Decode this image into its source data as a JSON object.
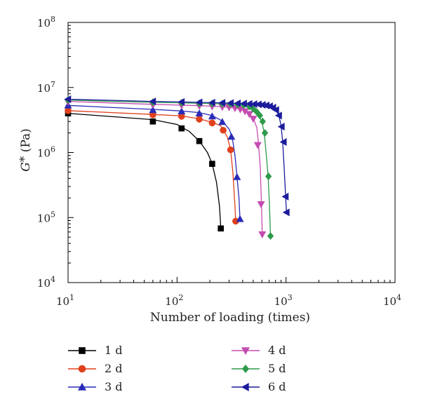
{
  "chart_data": {
    "type": "line",
    "title": "",
    "xlabel": "Number of loading (times)",
    "ylabel_base": "G",
    "ylabel_star": "*",
    "ylabel_unit": " (Pa)",
    "xscale": "log",
    "yscale": "log",
    "xlim": [
      10,
      10000
    ],
    "ylim": [
      10000,
      100000000
    ],
    "x_ticks": [
      {
        "base": "10",
        "exp": "1",
        "value": 10
      },
      {
        "base": "10",
        "exp": "2",
        "value": 100
      },
      {
        "base": "10",
        "exp": "3",
        "value": 1000
      },
      {
        "base": "10",
        "exp": "4",
        "value": 10000
      }
    ],
    "y_ticks": [
      {
        "base": "10",
        "exp": "4",
        "value": 10000
      },
      {
        "base": "10",
        "exp": "5",
        "value": 100000
      },
      {
        "base": "10",
        "exp": "6",
        "value": 1000000
      },
      {
        "base": "10",
        "exp": "7",
        "value": 10000000
      },
      {
        "base": "10",
        "exp": "8",
        "value": 100000000
      }
    ],
    "grid": false,
    "legend_position": "bottom",
    "series": [
      {
        "name": "1 d",
        "color": "#000000",
        "marker": "square",
        "line": [
          [
            10,
            4000000
          ],
          [
            60,
            3200000
          ],
          [
            100,
            2700000
          ],
          [
            130,
            2100000
          ],
          [
            160,
            1500000
          ],
          [
            190,
            1000000
          ],
          [
            210,
            670000
          ],
          [
            230,
            350000
          ],
          [
            245,
            150000
          ],
          [
            252,
            70000
          ]
        ],
        "markers": [
          [
            10,
            4000000
          ],
          [
            60,
            3000000
          ],
          [
            110,
            2350000
          ],
          [
            160,
            1500000
          ],
          [
            210,
            670000
          ],
          [
            252,
            68000
          ]
        ]
      },
      {
        "name": "2 d",
        "color": "#e0401c",
        "marker": "circle",
        "line": [
          [
            10,
            4400000
          ],
          [
            60,
            3850000
          ],
          [
            110,
            3650000
          ],
          [
            160,
            3300000
          ],
          [
            210,
            2900000
          ],
          [
            250,
            2600000
          ],
          [
            270,
            2150000
          ],
          [
            290,
            1700000
          ],
          [
            310,
            1100000
          ],
          [
            325,
            500000
          ],
          [
            340,
            150000
          ],
          [
            345,
            88000
          ]
        ],
        "markers": [
          [
            10,
            4400000
          ],
          [
            60,
            3800000
          ],
          [
            110,
            3600000
          ],
          [
            160,
            3250000
          ],
          [
            210,
            2850000
          ],
          [
            265,
            2200000
          ],
          [
            310,
            1100000
          ],
          [
            345,
            88000
          ]
        ]
      },
      {
        "name": "3 d",
        "color": "#2a2ab8",
        "marker": "triangle-up",
        "line": [
          [
            10,
            5300000
          ],
          [
            60,
            4600000
          ],
          [
            110,
            4350000
          ],
          [
            160,
            4100000
          ],
          [
            210,
            3700000
          ],
          [
            260,
            3050000
          ],
          [
            300,
            2300000
          ],
          [
            320,
            1750000
          ],
          [
            340,
            900000
          ],
          [
            355,
            420000
          ],
          [
            370,
            200000
          ],
          [
            378,
            95000
          ]
        ],
        "markers": [
          [
            10,
            5300000
          ],
          [
            60,
            4500000
          ],
          [
            110,
            4300000
          ],
          [
            160,
            4000000
          ],
          [
            210,
            3600000
          ],
          [
            260,
            2950000
          ],
          [
            315,
            1750000
          ],
          [
            355,
            420000
          ],
          [
            378,
            95000
          ]
        ]
      },
      {
        "name": "4 d",
        "color": "#c44cb0",
        "marker": "triangle-down",
        "line": [
          [
            10,
            6100000
          ],
          [
            60,
            5500000
          ],
          [
            110,
            5350000
          ],
          [
            160,
            5250000
          ],
          [
            210,
            5150000
          ],
          [
            260,
            5050000
          ],
          [
            300,
            4950000
          ],
          [
            350,
            4800000
          ],
          [
            400,
            4500000
          ],
          [
            450,
            4100000
          ],
          [
            500,
            3400000
          ],
          [
            540,
            2400000
          ],
          [
            560,
            1300000
          ],
          [
            580,
            600000
          ],
          [
            595,
            160000
          ],
          [
            605,
            55000
          ]
        ],
        "markers": [
          [
            10,
            6000000
          ],
          [
            60,
            5400000
          ],
          [
            110,
            5300000
          ],
          [
            160,
            5200000
          ],
          [
            210,
            5100000
          ],
          [
            260,
            5000000
          ],
          [
            300,
            4950000
          ],
          [
            340,
            4800000
          ],
          [
            380,
            4600000
          ],
          [
            420,
            4300000
          ],
          [
            460,
            3900000
          ],
          [
            500,
            3300000
          ],
          [
            550,
            1300000
          ],
          [
            590,
            160000
          ],
          [
            605,
            55000
          ]
        ]
      },
      {
        "name": "5 d",
        "color": "#2e9a4a",
        "marker": "diamond",
        "line": [
          [
            10,
            6400000
          ],
          [
            60,
            5900000
          ],
          [
            110,
            5800000
          ],
          [
            160,
            5700000
          ],
          [
            210,
            5650000
          ],
          [
            260,
            5600000
          ],
          [
            310,
            5550000
          ],
          [
            360,
            5450000
          ],
          [
            410,
            5300000
          ],
          [
            460,
            5000000
          ],
          [
            510,
            4500000
          ],
          [
            560,
            3700000
          ],
          [
            600,
            3000000
          ],
          [
            630,
            2000000
          ],
          [
            660,
            900000
          ],
          [
            685,
            430000
          ],
          [
            705,
            150000
          ],
          [
            720,
            52000
          ]
        ],
        "markers": [
          [
            10,
            6400000
          ],
          [
            60,
            5900000
          ],
          [
            110,
            5800000
          ],
          [
            160,
            5700000
          ],
          [
            210,
            5650000
          ],
          [
            260,
            5600000
          ],
          [
            310,
            5550000
          ],
          [
            360,
            5450000
          ],
          [
            410,
            5350000
          ],
          [
            460,
            5100000
          ],
          [
            500,
            4700000
          ],
          [
            540,
            4200000
          ],
          [
            575,
            3700000
          ],
          [
            610,
            3000000
          ],
          [
            640,
            2000000
          ],
          [
            690,
            430000
          ],
          [
            720,
            52000
          ]
        ]
      },
      {
        "name": "6 d",
        "color": "#1c1c9c",
        "marker": "triangle-left",
        "line": [
          [
            10,
            6600000
          ],
          [
            60,
            6100000
          ],
          [
            110,
            6000000
          ],
          [
            160,
            5900000
          ],
          [
            210,
            5850000
          ],
          [
            260,
            5800000
          ],
          [
            310,
            5750000
          ],
          [
            360,
            5700000
          ],
          [
            410,
            5650000
          ],
          [
            460,
            5600000
          ],
          [
            510,
            5550000
          ],
          [
            560,
            5500000
          ],
          [
            610,
            5400000
          ],
          [
            660,
            5300000
          ],
          [
            710,
            5150000
          ],
          [
            760,
            4900000
          ],
          [
            810,
            4500000
          ],
          [
            860,
            3700000
          ],
          [
            900,
            2600000
          ],
          [
            930,
            1500000
          ],
          [
            960,
            600000
          ],
          [
            990,
            220000
          ],
          [
            1010,
            120000
          ]
        ],
        "markers": [
          [
            10,
            6600000
          ],
          [
            60,
            6100000
          ],
          [
            110,
            6000000
          ],
          [
            160,
            5900000
          ],
          [
            210,
            5850000
          ],
          [
            260,
            5800000
          ],
          [
            310,
            5750000
          ],
          [
            360,
            5700000
          ],
          [
            410,
            5650000
          ],
          [
            460,
            5600000
          ],
          [
            510,
            5550000
          ],
          [
            560,
            5500000
          ],
          [
            610,
            5400000
          ],
          [
            660,
            5300000
          ],
          [
            710,
            5150000
          ],
          [
            760,
            4900000
          ],
          [
            810,
            4500000
          ],
          [
            860,
            3700000
          ],
          [
            910,
            2500000
          ],
          [
            950,
            1450000
          ],
          [
            990,
            210000
          ],
          [
            1010,
            120000
          ]
        ]
      }
    ]
  }
}
